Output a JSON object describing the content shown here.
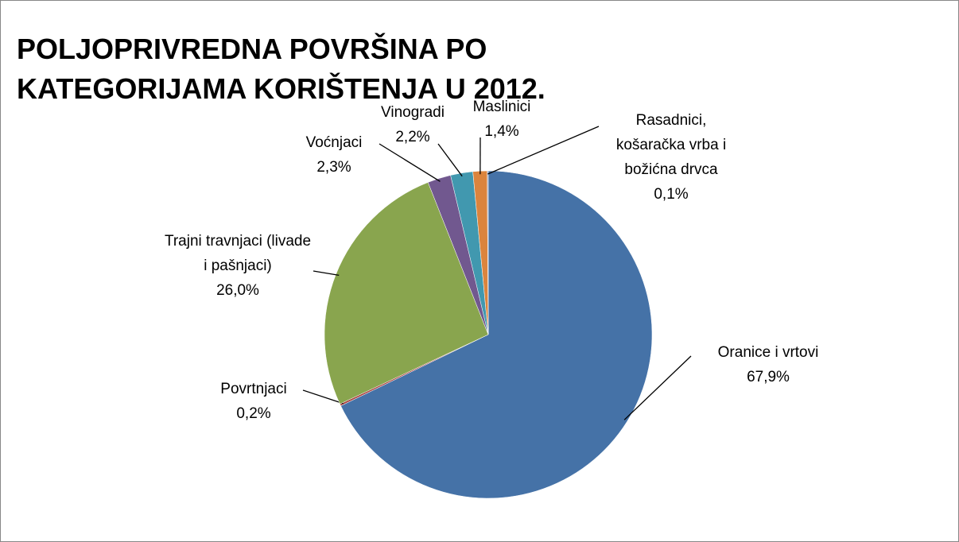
{
  "chart_data": {
    "type": "pie",
    "title": "POLJOPRIVREDNA POVRŠINA PO KATEGORIJAMA KORIŠTENJA U 2012.",
    "categories": [
      "Oranice i vrtovi",
      "Povrtnjaci",
      "Trajni travnjaci (livade i pašnjaci)",
      "Voćnjaci",
      "Vinogradi",
      "Maslinici",
      "Rasadnici, košaračka vrba i božićna drvca"
    ],
    "values": [
      67.9,
      0.2,
      26.0,
      2.3,
      2.2,
      1.4,
      0.1
    ],
    "value_labels": [
      "67,9%",
      "0,2%",
      "26,0%",
      "2,3%",
      "2,2%",
      "1,4%",
      "0,1%"
    ],
    "colors": [
      "#4572a7",
      "#aa4643",
      "#89a54e",
      "#71588f",
      "#4198af",
      "#db843d",
      "#93a9cf"
    ]
  }
}
